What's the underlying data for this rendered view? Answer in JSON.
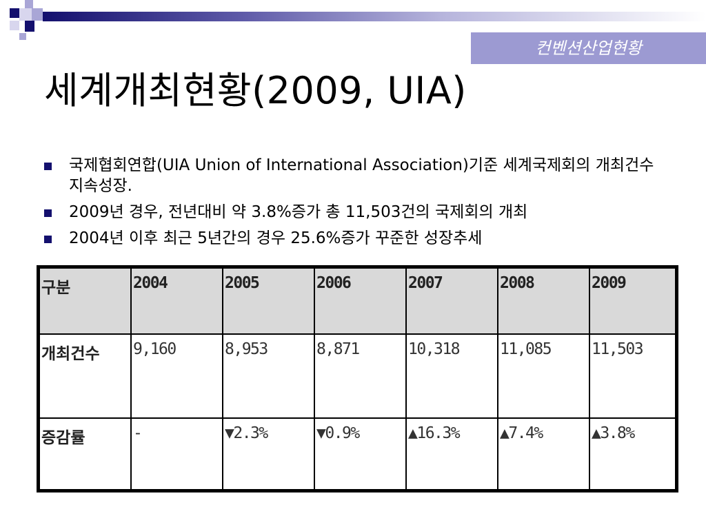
{
  "header": {
    "section_tag": "컨벤션산업현황",
    "title": "세계개최현황(2009, UIA)"
  },
  "bullets": [
    "국제협회연합(UIA Union of International Association)기준 세계국제회의 개최건수 지속성장.",
    "2009년 경우, 전년대비 약 3.8%증가 총 11,503건의 국제회의 개최",
    "2004년 이후 최근 5년간의 경우 25.6%증가 꾸준한 성장추세"
  ],
  "table": {
    "columns": [
      "구분",
      "2004",
      "2005",
      "2006",
      "2007",
      "2008",
      "2009"
    ],
    "rows": [
      {
        "label": "개최건수",
        "values": [
          "9,160",
          "8,953",
          "8,871",
          "10,318",
          "11,085",
          "11,503"
        ]
      },
      {
        "label": "증감률",
        "values": [
          "-",
          "▼2.3%",
          "▼0.9%",
          "▲16.3%",
          "▲7.4%",
          "▲3.8%"
        ]
      }
    ]
  },
  "colors": {
    "accent_navy": "#14106e",
    "tag_background": "#9c9ad2",
    "table_header_bg": "#d9d9d9"
  }
}
